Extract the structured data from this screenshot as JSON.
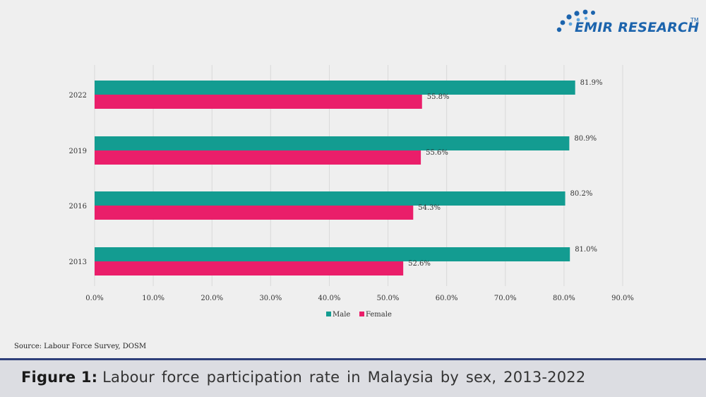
{
  "brand": {
    "name": "EMIR RESEARCH",
    "tm": "TM"
  },
  "source": "Source: Labour Force Survey, DOSM",
  "caption": {
    "prefix": "Figure 1:",
    "text": "Labour force participation rate in Malaysia by sex, 2013-2022"
  },
  "colors": {
    "male": "#139c91",
    "female": "#ea1e6a",
    "grid": "#d9d9d9",
    "brand": "#1c64ad"
  },
  "chart_data": {
    "type": "bar",
    "orientation": "horizontal",
    "categories": [
      "2022",
      "2019",
      "2016",
      "2013"
    ],
    "series": [
      {
        "name": "Male",
        "values": [
          81.9,
          80.9,
          80.2,
          81.0
        ],
        "labels": [
          "81.9%",
          "80.9%",
          "80.2%",
          "81.0%"
        ]
      },
      {
        "name": "Female",
        "values": [
          55.8,
          55.6,
          54.3,
          52.6
        ],
        "labels": [
          "55.8%",
          "55.6%",
          "54.3%",
          "52.6%"
        ]
      }
    ],
    "xlim": [
      0,
      90
    ],
    "xticks": [
      "0.0%",
      "10.0%",
      "20.0%",
      "30.0%",
      "40.0%",
      "50.0%",
      "60.0%",
      "70.0%",
      "80.0%",
      "90.0%"
    ],
    "grid": true,
    "legend_position": "bottom"
  }
}
